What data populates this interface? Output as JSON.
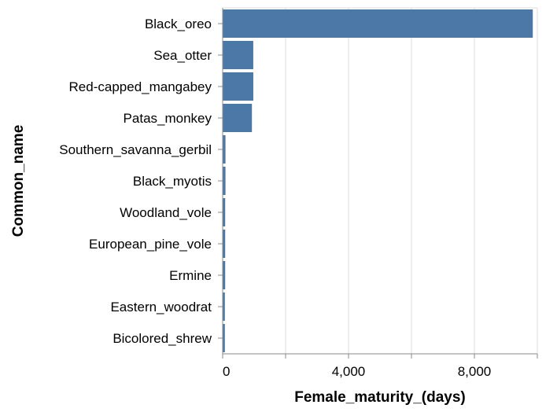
{
  "chart_data": {
    "type": "bar",
    "orientation": "horizontal",
    "categories": [
      "Black_oreo",
      "Sea_otter",
      "Red-capped_mangabey",
      "Patas_monkey",
      "Southern_savanna_gerbil",
      "Black_myotis",
      "Woodland_vole",
      "European_pine_vole",
      "Ermine",
      "Eastern_woodrat",
      "Bicolored_shrew"
    ],
    "values": [
      9855,
      973,
      974,
      930,
      90,
      90,
      80,
      80,
      80,
      70,
      70
    ],
    "xlabel": "Female_maturity_(days)",
    "ylabel": "Common_name",
    "xlim": [
      0,
      10000
    ],
    "x_ticks": [
      0,
      2000,
      4000,
      6000,
      8000,
      10000
    ],
    "x_tick_labels": [
      "0",
      "",
      "4,000",
      "",
      "8,000",
      ""
    ],
    "grid": true,
    "bar_color": "#4c78a8",
    "grid_color": "#dddddd",
    "axis_color": "#888888"
  }
}
